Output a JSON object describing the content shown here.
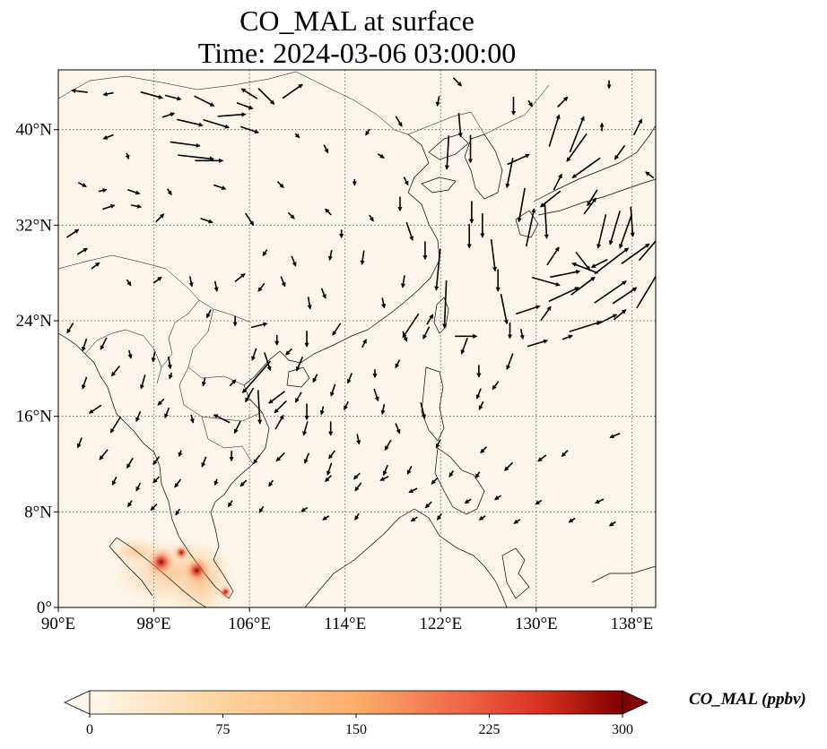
{
  "title": {
    "line1": "CO_MAL at surface",
    "line2": "Time: 2024-03-06 03:00:00"
  },
  "map": {
    "projection": "PlateCarree",
    "lon_range": [
      90,
      140
    ],
    "lat_range": [
      0,
      45
    ],
    "gridlines": "dotted",
    "lat_ticks": [
      {
        "value": 0,
        "label": "0°"
      },
      {
        "value": 8,
        "label": "8°N"
      },
      {
        "value": 16,
        "label": "16°N"
      },
      {
        "value": 24,
        "label": "24°N"
      },
      {
        "value": 32,
        "label": "32°N"
      },
      {
        "value": 40,
        "label": "40°N"
      }
    ],
    "lon_ticks": [
      {
        "value": 90,
        "label": "90°E"
      },
      {
        "value": 98,
        "label": "98°E"
      },
      {
        "value": 106,
        "label": "106°E"
      },
      {
        "value": 114,
        "label": "114°E"
      },
      {
        "value": 122,
        "label": "122°E"
      },
      {
        "value": 130,
        "label": "130°E"
      },
      {
        "value": 138,
        "label": "138°E"
      }
    ],
    "background_color": "#fdf5ea",
    "hotspots": [
      {
        "lon": 98.6,
        "lat": 3.8,
        "value": 300
      },
      {
        "lon": 101.6,
        "lat": 3.1,
        "value": 260
      },
      {
        "lon": 100.3,
        "lat": 4.6,
        "value": 120
      },
      {
        "lon": 104.0,
        "lat": 1.3,
        "value": 90
      }
    ],
    "wind_vectors": [
      [
        91.8,
        43.2,
        -0.8,
        0.1
      ],
      [
        94.2,
        43.0,
        -0.5,
        -0.1
      ],
      [
        97.8,
        42.9,
        1.1,
        -0.3
      ],
      [
        99.6,
        42.7,
        0.8,
        -0.2
      ],
      [
        102.2,
        42.4,
        1.0,
        -0.5
      ],
      [
        104.5,
        41.2,
        1.4,
        0.1
      ],
      [
        105.6,
        42.0,
        0.8,
        -0.3
      ],
      [
        106.0,
        43.0,
        -0.8,
        0.5
      ],
      [
        107.4,
        42.8,
        0.8,
        -0.8
      ],
      [
        109.6,
        43.2,
        1.0,
        0.7
      ],
      [
        99.2,
        41.2,
        0.6,
        0.2
      ],
      [
        101.0,
        40.6,
        1.3,
        -0.3
      ],
      [
        103.2,
        40.5,
        1.3,
        -0.4
      ],
      [
        106.0,
        40.0,
        0.9,
        -0.3
      ],
      [
        94.2,
        39.4,
        -0.5,
        -0.2
      ],
      [
        100.6,
        38.8,
        1.5,
        -0.2
      ],
      [
        101.5,
        37.7,
        1.8,
        -0.2
      ],
      [
        102.6,
        37.4,
        1.4,
        0.0
      ],
      [
        95.8,
        37.8,
        0.1,
        -0.3
      ],
      [
        103.5,
        35.2,
        0.6,
        -0.2
      ],
      [
        92.0,
        35.4,
        0.4,
        -0.2
      ],
      [
        93.7,
        34.9,
        0.4,
        0.1
      ],
      [
        96.3,
        34.8,
        0.6,
        -0.2
      ],
      [
        99.3,
        34.8,
        0.2,
        -0.3
      ],
      [
        108.6,
        35.4,
        0.3,
        -0.3
      ],
      [
        94.2,
        33.5,
        0.6,
        0.2
      ],
      [
        96.5,
        33.6,
        0.5,
        -0.1
      ],
      [
        98.5,
        32.6,
        0.4,
        0.4
      ],
      [
        102.4,
        32.4,
        0.6,
        -0.2
      ],
      [
        106.0,
        32.5,
        0.4,
        -0.6
      ],
      [
        109.5,
        32.8,
        0.3,
        -0.3
      ],
      [
        91.2,
        31.3,
        0.6,
        0.4
      ],
      [
        92.0,
        29.8,
        0.5,
        0.3
      ],
      [
        93.1,
        28.6,
        0.4,
        0.3
      ],
      [
        95.9,
        27.2,
        0.2,
        -0.3
      ],
      [
        98.3,
        27.4,
        0.4,
        0.3
      ],
      [
        101.1,
        27.3,
        0.1,
        -0.5
      ],
      [
        103.2,
        26.9,
        0.1,
        -0.5
      ],
      [
        105.2,
        27.6,
        0.5,
        0.4
      ],
      [
        107.0,
        26.8,
        -0.3,
        -0.4
      ],
      [
        108.8,
        27.3,
        0.2,
        -0.5
      ],
      [
        111.0,
        25.5,
        0.1,
        -0.6
      ],
      [
        112.2,
        26.3,
        0.2,
        -0.5
      ],
      [
        117.2,
        25.5,
        0.1,
        -0.5
      ],
      [
        102.6,
        24.6,
        -0.2,
        -0.4
      ],
      [
        104.8,
        24.0,
        0.0,
        -0.5
      ],
      [
        106.8,
        23.6,
        0.8,
        0.2
      ],
      [
        108.3,
        22.4,
        0.0,
        -0.5
      ],
      [
        110.8,
        22.5,
        0.0,
        -0.8
      ],
      [
        113.3,
        23.3,
        -0.4,
        -0.6
      ],
      [
        115.6,
        22.1,
        0.2,
        0.4
      ],
      [
        91.0,
        23.4,
        -0.3,
        -0.5
      ],
      [
        92.2,
        22.0,
        -0.2,
        -0.6
      ],
      [
        93.8,
        22.1,
        -0.3,
        -0.6
      ],
      [
        96.0,
        21.2,
        0.1,
        -0.4
      ],
      [
        98.0,
        21.0,
        -0.1,
        -0.5
      ],
      [
        99.3,
        20.5,
        0.1,
        -0.6
      ],
      [
        94.8,
        19.8,
        -0.4,
        -0.5
      ],
      [
        92.2,
        18.8,
        -0.2,
        -0.6
      ],
      [
        97.1,
        18.9,
        -0.2,
        -0.7
      ],
      [
        99.4,
        19.4,
        -0.1,
        -0.3
      ],
      [
        102.2,
        18.9,
        -0.1,
        -0.4
      ],
      [
        104.6,
        18.8,
        0.3,
        0.3
      ],
      [
        106.4,
        21.2,
        -0.2,
        -0.6
      ],
      [
        107.5,
        20.6,
        0.3,
        -0.9
      ],
      [
        109.3,
        21.4,
        -0.3,
        -0.3
      ],
      [
        110.2,
        20.4,
        -0.3,
        -0.7
      ],
      [
        111.5,
        19.2,
        -0.2,
        -0.4
      ],
      [
        114.4,
        19.2,
        -0.2,
        -0.5
      ],
      [
        116.5,
        19.6,
        0.0,
        -0.4
      ],
      [
        118.4,
        20.4,
        -0.2,
        -0.4
      ],
      [
        108.3,
        17.6,
        -0.8,
        -0.6
      ],
      [
        106.6,
        19.3,
        -1.4,
        -1.6
      ],
      [
        106.8,
        16.8,
        0.1,
        -1.7
      ],
      [
        106.0,
        17.8,
        -0.4,
        -0.7
      ],
      [
        110.8,
        16.4,
        0.0,
        -0.8
      ],
      [
        113.0,
        18.2,
        -0.2,
        -0.6
      ],
      [
        116.6,
        17.8,
        0.2,
        -0.6
      ],
      [
        118.4,
        15.0,
        0.2,
        -0.5
      ],
      [
        120.5,
        16.5,
        0.2,
        -0.8
      ],
      [
        93.1,
        16.6,
        -0.6,
        -0.4
      ],
      [
        94.8,
        15.3,
        -0.5,
        -0.8
      ],
      [
        96.7,
        16.0,
        -0.2,
        -0.5
      ],
      [
        99.1,
        16.3,
        -0.2,
        -0.5
      ],
      [
        101.2,
        15.8,
        0.1,
        -0.4
      ],
      [
        103.7,
        15.8,
        -0.8,
        0.4
      ],
      [
        105.0,
        15.1,
        -0.3,
        -0.6
      ],
      [
        108.5,
        15.5,
        0.4,
        0.7
      ],
      [
        110.7,
        15.0,
        -0.2,
        -0.7
      ],
      [
        112.8,
        15.0,
        0.0,
        -0.7
      ],
      [
        115.1,
        14.1,
        0.1,
        -0.5
      ],
      [
        117.6,
        13.6,
        -0.3,
        -0.5
      ],
      [
        91.8,
        13.8,
        -0.2,
        -0.5
      ],
      [
        93.8,
        12.8,
        -0.4,
        -0.5
      ],
      [
        96.0,
        12.1,
        -0.3,
        -0.5
      ],
      [
        98.2,
        12.3,
        -0.3,
        -0.4
      ],
      [
        100.2,
        12.9,
        -0.1,
        -0.3
      ],
      [
        102.2,
        12.2,
        -0.2,
        -0.5
      ],
      [
        104.5,
        12.7,
        0.0,
        -0.5
      ],
      [
        106.6,
        12.4,
        -0.3,
        -0.4
      ],
      [
        108.6,
        12.6,
        -0.4,
        -0.4
      ],
      [
        110.8,
        12.5,
        -0.2,
        -0.5
      ],
      [
        112.7,
        11.6,
        -0.2,
        -0.6
      ],
      [
        115.0,
        11.0,
        -0.3,
        -0.3
      ],
      [
        117.4,
        11.5,
        -0.2,
        -0.5
      ],
      [
        119.4,
        11.5,
        -0.2,
        -0.4
      ],
      [
        121.5,
        10.6,
        -0.3,
        -0.3
      ],
      [
        122.9,
        11.2,
        -0.2,
        -0.3
      ],
      [
        125.1,
        11.1,
        -0.2,
        -0.3
      ],
      [
        127.7,
        11.8,
        -0.4,
        -0.4
      ],
      [
        130.5,
        12.5,
        -0.4,
        -0.3
      ],
      [
        132.4,
        12.9,
        -0.3,
        -0.3
      ],
      [
        136.6,
        14.4,
        -0.5,
        -0.2
      ],
      [
        94.7,
        10.6,
        -0.2,
        -0.4
      ],
      [
        96.7,
        10.1,
        -0.2,
        -0.4
      ],
      [
        98.2,
        10.7,
        -0.3,
        -0.3
      ],
      [
        100.0,
        10.4,
        -0.3,
        -0.4
      ],
      [
        103.2,
        10.5,
        -0.1,
        -0.3
      ],
      [
        105.5,
        10.4,
        -0.3,
        -0.3
      ],
      [
        107.8,
        10.4,
        -0.2,
        -0.3
      ],
      [
        112.6,
        10.8,
        -0.3,
        -0.3
      ],
      [
        115.1,
        10.1,
        -0.3,
        -0.4
      ],
      [
        117.3,
        10.8,
        -0.4,
        -0.2
      ],
      [
        119.7,
        9.8,
        -0.4,
        -0.2
      ],
      [
        121.0,
        8.6,
        -0.3,
        -0.3
      ],
      [
        124.3,
        8.9,
        -0.3,
        -0.2
      ],
      [
        126.8,
        9.2,
        -0.3,
        -0.2
      ],
      [
        130.2,
        8.8,
        -0.3,
        -0.2
      ],
      [
        135.3,
        8.9,
        -0.4,
        -0.2
      ],
      [
        96.0,
        8.7,
        -0.2,
        -0.3
      ],
      [
        98.0,
        8.4,
        -0.3,
        -0.3
      ],
      [
        100.0,
        8.0,
        -0.2,
        -0.3
      ],
      [
        104.4,
        8.7,
        -0.2,
        -0.3
      ],
      [
        107.0,
        8.2,
        -0.2,
        -0.3
      ],
      [
        110.6,
        8.2,
        -0.3,
        -0.2
      ],
      [
        112.4,
        7.5,
        -0.3,
        -0.2
      ],
      [
        115.0,
        7.6,
        -0.2,
        -0.3
      ],
      [
        119.8,
        7.4,
        -0.3,
        -0.2
      ],
      [
        121.9,
        7.6,
        -0.2,
        -0.3
      ],
      [
        125.5,
        7.5,
        -0.3,
        -0.2
      ],
      [
        128.4,
        7.2,
        -0.3,
        -0.2
      ],
      [
        133.0,
        7.3,
        -0.3,
        -0.2
      ],
      [
        136.4,
        7.0,
        -0.3,
        -0.2
      ],
      [
        119.1,
        35.7,
        0.2,
        -0.4
      ],
      [
        118.6,
        33.8,
        0.0,
        -0.7
      ],
      [
        119.4,
        31.5,
        0.3,
        -0.9
      ],
      [
        120.7,
        29.9,
        0.0,
        -0.9
      ],
      [
        121.8,
        28.3,
        -0.2,
        -2.1
      ],
      [
        122.4,
        25.4,
        -0.1,
        -2.4
      ],
      [
        124.1,
        22.7,
        1.1,
        0.0
      ],
      [
        124.0,
        21.9,
        -0.3,
        -0.8
      ],
      [
        125.2,
        19.8,
        0.0,
        -0.6
      ],
      [
        125.2,
        17.9,
        -0.2,
        -0.5
      ],
      [
        125.4,
        16.9,
        -0.2,
        -0.4
      ],
      [
        126.6,
        18.6,
        -0.3,
        -0.4
      ],
      [
        122.6,
        38.1,
        -0.1,
        -1.7
      ],
      [
        123.6,
        40.4,
        0.1,
        -1.2
      ],
      [
        124.5,
        38.4,
        0.0,
        -1.4
      ],
      [
        124.6,
        33.1,
        0.0,
        -1.1
      ],
      [
        124.4,
        31.1,
        0.0,
        -1.2
      ],
      [
        125.5,
        32.0,
        0.0,
        -1.2
      ],
      [
        126.4,
        29.5,
        0.2,
        -1.6
      ],
      [
        126.8,
        27.4,
        0.0,
        -1.1
      ],
      [
        127.3,
        25.0,
        0.3,
        -1.5
      ],
      [
        127.8,
        20.6,
        -0.3,
        -0.8
      ],
      [
        127.8,
        23.2,
        0.0,
        -0.8
      ],
      [
        128.8,
        22.9,
        0.1,
        -0.5
      ],
      [
        127.8,
        36.4,
        -0.3,
        -1.5
      ],
      [
        128.5,
        37.5,
        1.1,
        0.5
      ],
      [
        128.1,
        42.0,
        0.0,
        -0.9
      ],
      [
        128.8,
        33.7,
        -0.3,
        -1.7
      ],
      [
        129.5,
        31.8,
        0.4,
        1.9
      ],
      [
        130.8,
        32.4,
        0.1,
        -1.8
      ],
      [
        131.4,
        29.4,
        0.6,
        0.9
      ],
      [
        131.8,
        35.6,
        0.4,
        0.8
      ],
      [
        131.2,
        34.2,
        -1.0,
        -0.8
      ],
      [
        131.5,
        39.9,
        0.5,
        1.6
      ],
      [
        132.2,
        42.3,
        0.5,
        0.5
      ],
      [
        133.4,
        38.5,
        -1.0,
        -1.4
      ],
      [
        134.2,
        36.8,
        -1.4,
        -1.0
      ],
      [
        133.4,
        39.6,
        0.7,
        1.8
      ],
      [
        134.5,
        33.6,
        0.6,
        0.8
      ],
      [
        135.5,
        40.2,
        0.0,
        0.4
      ],
      [
        134.7,
        34.3,
        -0.5,
        -0.8
      ],
      [
        130.8,
        27.3,
        1.4,
        -0.4
      ],
      [
        132.4,
        27.9,
        1.5,
        0.3
      ],
      [
        133.9,
        29.0,
        0.7,
        -0.9
      ],
      [
        134.1,
        28.4,
        -1.3,
        0.5
      ],
      [
        132.3,
        26.2,
        1.5,
        0.7
      ],
      [
        133.9,
        26.9,
        1.2,
        0.9
      ],
      [
        136.2,
        26.4,
        1.6,
        1.1
      ],
      [
        137.4,
        26.1,
        1.2,
        0.8
      ],
      [
        137.0,
        24.5,
        0.6,
        0.5
      ],
      [
        135.3,
        28.8,
        -0.8,
        -0.4
      ],
      [
        136.3,
        29.0,
        1.7,
        1.3
      ],
      [
        137.5,
        31.5,
        -0.6,
        -1.7
      ],
      [
        138.0,
        32.3,
        0.1,
        -1.5
      ],
      [
        138.3,
        29.6,
        1.4,
        1.0
      ],
      [
        139.6,
        30.2,
        1.2,
        1.4
      ],
      [
        139.4,
        26.7,
        1.2,
        2.0
      ],
      [
        136.6,
        31.8,
        -0.5,
        -1.7
      ],
      [
        135.5,
        31.5,
        -0.4,
        -1.7
      ],
      [
        137.0,
        38.1,
        -0.5,
        -0.7
      ],
      [
        138.5,
        40.2,
        0.4,
        0.8
      ],
      [
        139.5,
        36.2,
        -0.4,
        0.3
      ],
      [
        129.3,
        24.9,
        1.2,
        0.4
      ],
      [
        130.8,
        24.6,
        0.5,
        0.7
      ],
      [
        132.6,
        22.6,
        0.5,
        0.2
      ],
      [
        134.1,
        23.5,
        1.6,
        0.5
      ],
      [
        135.9,
        24.1,
        1.0,
        0.5
      ],
      [
        130.1,
        22.1,
        1.0,
        0.3
      ],
      [
        121.1,
        24.1,
        0.3,
        0.5
      ],
      [
        119.5,
        23.6,
        -0.8,
        -1.2
      ],
      [
        119.0,
        22.7,
        0.2,
        -0.5
      ],
      [
        120.8,
        23.0,
        -0.3,
        -0.6
      ],
      [
        118.9,
        27.3,
        -0.1,
        -0.6
      ],
      [
        115.5,
        29.3,
        -0.1,
        -0.7
      ],
      [
        112.8,
        29.5,
        -0.1,
        -0.5
      ],
      [
        109.7,
        29.0,
        0.2,
        -0.5
      ],
      [
        107.3,
        29.7,
        -0.2,
        -0.3
      ],
      [
        116.2,
        32.6,
        0.2,
        -0.3
      ],
      [
        112.6,
        33.1,
        -0.3,
        0.3
      ],
      [
        113.7,
        31.3,
        0.0,
        -0.4
      ],
      [
        118.5,
        40.7,
        0.3,
        -0.5
      ],
      [
        115.9,
        39.8,
        -0.2,
        -0.3
      ],
      [
        117.0,
        37.8,
        0.3,
        -0.2
      ],
      [
        114.8,
        35.6,
        0.0,
        -0.3
      ],
      [
        112.4,
        38.4,
        0.2,
        -0.4
      ],
      [
        110.0,
        39.5,
        0.2,
        -0.2
      ],
      [
        121.8,
        42.4,
        -0.1,
        -0.5
      ],
      [
        123.4,
        44.0,
        0.4,
        -0.4
      ],
      [
        129.5,
        42.2,
        0.2,
        -0.3
      ],
      [
        136.1,
        43.8,
        0.0,
        -0.4
      ],
      [
        117.2,
        16.6,
        -0.1,
        -0.5
      ],
      [
        114.1,
        16.9,
        -0.2,
        -0.4
      ],
      [
        112.1,
        16.5,
        -0.1,
        -0.4
      ],
      [
        110.1,
        17.6,
        -0.3,
        -0.5
      ],
      [
        108.6,
        16.8,
        -0.6,
        -0.6
      ],
      [
        112.9,
        12.8,
        -0.3,
        -0.4
      ],
      [
        121.8,
        13.7,
        -0.2,
        -0.4
      ],
      [
        125.6,
        13.2,
        -0.3,
        -0.3
      ],
      [
        98.6,
        17.2,
        -0.3,
        -0.3
      ]
    ]
  },
  "colorbar": {
    "label": "CO_MAL (ppbv)",
    "colormap": "OrRd",
    "min": 0,
    "max": 300,
    "extend": "both",
    "ticks": [
      "0",
      "75",
      "150",
      "225",
      "300"
    ],
    "tick_values": [
      0,
      75,
      150,
      225,
      300
    ],
    "colors": [
      "#fff7ec",
      "#fdd49e",
      "#fc8d59",
      "#d7301f",
      "#7f0000"
    ]
  }
}
